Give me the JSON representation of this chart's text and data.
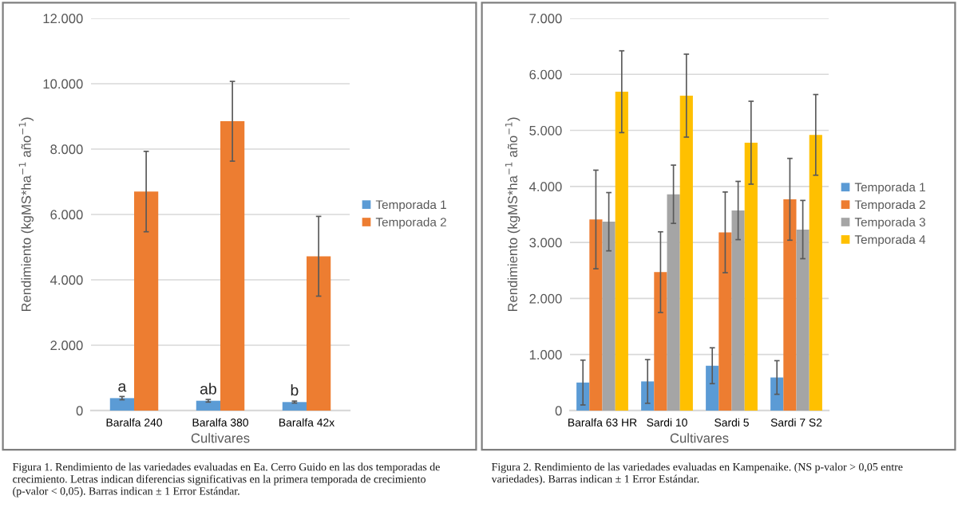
{
  "chart_data": [
    {
      "type": "bar",
      "categories": [
        "Baralfa 240",
        "Baralfa 380",
        "Baralfa 42x"
      ],
      "xlabel": "Cultivares",
      "ylabel": "Rendimiento (kgMS*ha$^{−1}$ año$^{−1}$)",
      "series": [
        {
          "name": "Temporada 1",
          "color": "#5b9bd5",
          "values": [
            380,
            300,
            260
          ],
          "errors": [
            50,
            40,
            30
          ]
        },
        {
          "name": "Temporada 2",
          "color": "#ed7d31",
          "values": [
            6700,
            8850,
            4720
          ],
          "errors": [
            1230,
            1220,
            1220
          ]
        }
      ],
      "ylim": [
        0,
        12000
      ],
      "yticks": [
        {
          "value": 0,
          "label": "0"
        },
        {
          "value": 2000,
          "label": "2.000"
        },
        {
          "value": 4000,
          "label": "4.000"
        },
        {
          "value": 6000,
          "label": "6.000"
        },
        {
          "value": 8000,
          "label": "8.000"
        },
        {
          "value": 10000,
          "label": "10.000"
        },
        {
          "value": 12000,
          "label": "12.000"
        }
      ],
      "grid": "y",
      "legend": "right",
      "annotations": [
        {
          "text": "a",
          "x": "Baralfa 240",
          "y": 380
        },
        {
          "text": "ab",
          "x": "Baralfa 380",
          "y": 300
        },
        {
          "text": "b",
          "x": "Baralfa 42x",
          "y": 260
        },
        "Figura 1. Rendimiento de las variedades evaluadas en Ea. Cerro Guido en las dos temporadas de crecimiento. Letras indican diferencias significativas en la primera temporada de crecimiento (p-valor < 0,05). Barras indican ± 1 Error Estándar."
      ]
    },
    {
      "type": "bar",
      "categories": [
        "Baralfa 63 HR",
        "Sardi 10",
        "Sardi 5",
        "Sardi 7 S2"
      ],
      "xlabel": "Cultivares",
      "ylabel": "Rendimiento (kgMS*ha$^{−1}$ año$^{−1}$)",
      "series": [
        {
          "name": "Temporada 1",
          "color": "#5b9bd5",
          "values": [
            500,
            520,
            800,
            590
          ],
          "errors": [
            400,
            390,
            320,
            300
          ]
        },
        {
          "name": "Temporada 2",
          "color": "#ed7d31",
          "values": [
            3410,
            2470,
            3180,
            3770
          ],
          "errors": [
            880,
            720,
            720,
            730
          ]
        },
        {
          "name": "Temporada 3",
          "color": "#a5a5a5",
          "values": [
            3370,
            3860,
            3570,
            3230
          ],
          "errors": [
            520,
            520,
            520,
            520
          ]
        },
        {
          "name": "Temporada 4",
          "color": "#ffc000",
          "values": [
            5690,
            5620,
            4780,
            4920
          ],
          "errors": [
            730,
            740,
            740,
            720
          ]
        }
      ],
      "ylim": [
        0,
        7000
      ],
      "yticks": [
        {
          "value": 0,
          "label": "0"
        },
        {
          "value": 1000,
          "label": "1.000"
        },
        {
          "value": 2000,
          "label": "2.000"
        },
        {
          "value": 3000,
          "label": "3.000"
        },
        {
          "value": 4000,
          "label": "4.000"
        },
        {
          "value": 5000,
          "label": "5.000"
        },
        {
          "value": 6000,
          "label": "6.000"
        },
        {
          "value": 7000,
          "label": "7.000"
        }
      ],
      "grid": "y",
      "legend": "right",
      "annotations": [
        "Figura 2. Rendimiento de las variedades evaluadas en Kampenaike. (NS p-valor > 0,05 entre variedades). Barras indican ± 1 Error Estándar."
      ]
    }
  ]
}
